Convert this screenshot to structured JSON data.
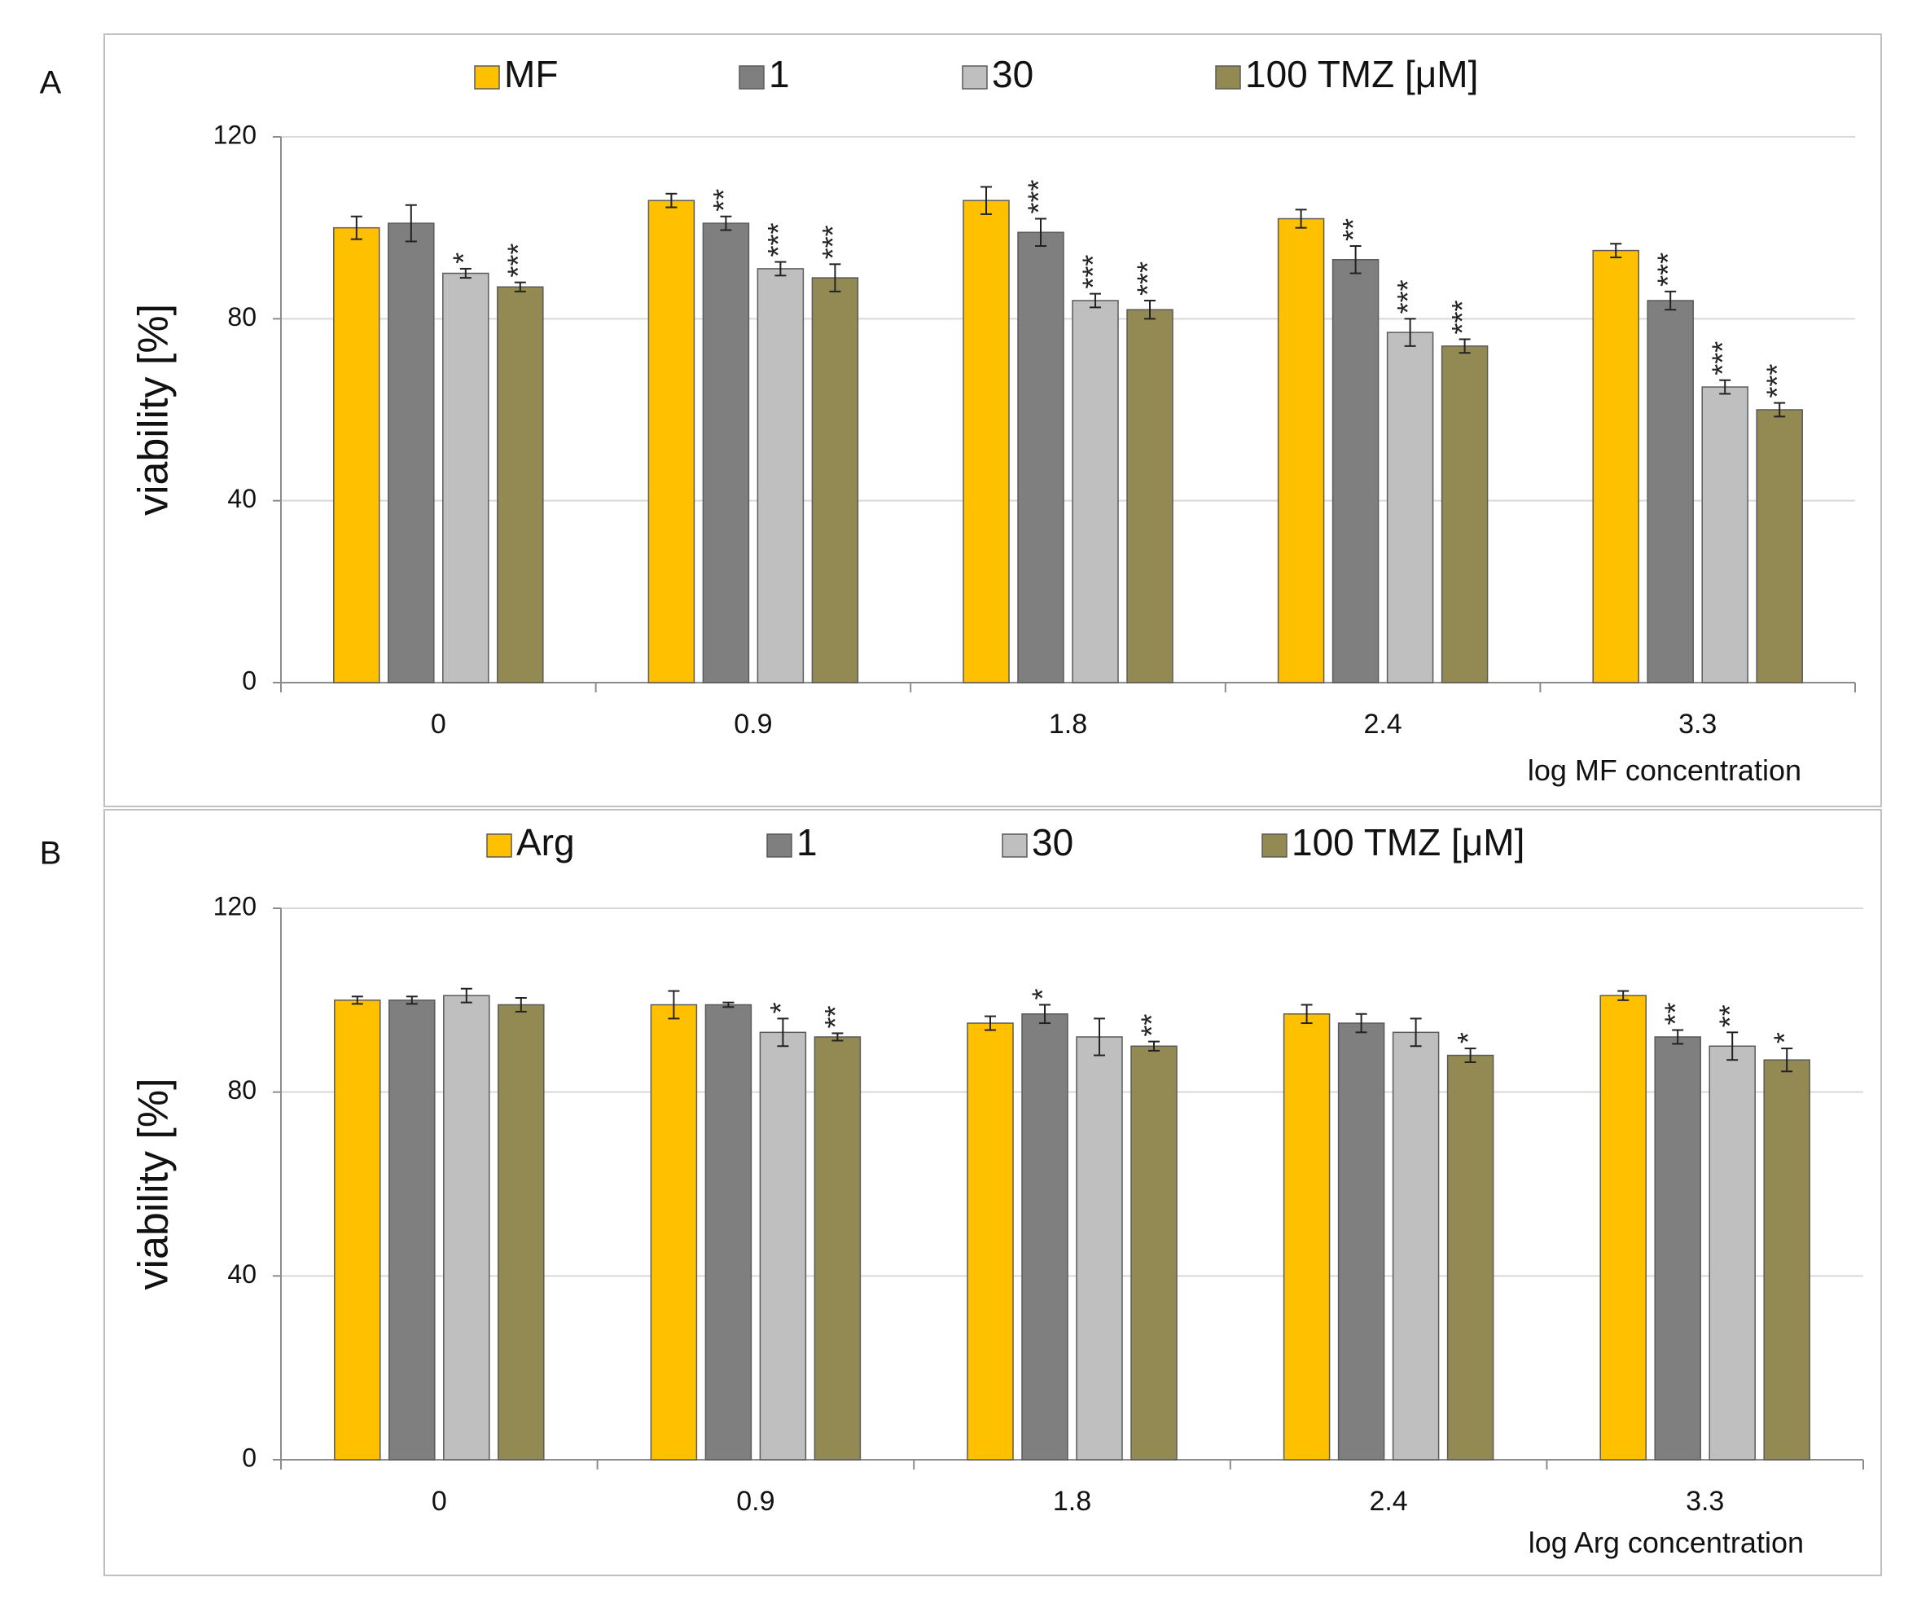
{
  "colors": {
    "series": [
      "#FFC000",
      "#7F7F7F",
      "#BFBFBF",
      "#938953"
    ],
    "bar_stroke": "#5a5a5a",
    "grid": "#d9d9d9",
    "axis": "#8c8c8c",
    "frame": "#c0c0c0",
    "text": "#111111"
  },
  "chart_data": [
    {
      "panel_label": "A",
      "type": "bar",
      "ylabel": "viability [%]",
      "xlabel": "log MF concentration",
      "ylim": [
        0,
        120
      ],
      "yticks": [
        "0",
        "40",
        "80",
        "120"
      ],
      "ytick_values": [
        0,
        40,
        80,
        120
      ],
      "grid": true,
      "legend_position": "top",
      "categories": [
        "0",
        "0.9",
        "1.8",
        "2.4",
        "3.3"
      ],
      "series": [
        {
          "name": "MF",
          "values": [
            100,
            106,
            106,
            102,
            95
          ],
          "errors": [
            2.5,
            1.5,
            3,
            2,
            1.5
          ],
          "sig": [
            "",
            "",
            "",
            "",
            ""
          ]
        },
        {
          "name": "1",
          "values": [
            101,
            101,
            99,
            93,
            84
          ],
          "errors": [
            4,
            1.5,
            3,
            3,
            2
          ],
          "sig": [
            "",
            "**",
            "***",
            "**",
            "***"
          ]
        },
        {
          "name": "30",
          "values": [
            90,
            91,
            84,
            77,
            65
          ],
          "errors": [
            1,
            1.5,
            1.5,
            3,
            1.5
          ],
          "sig": [
            "*",
            "***",
            "***",
            "***",
            "***"
          ]
        },
        {
          "name": "100 TMZ [μM]",
          "values": [
            87,
            89,
            82,
            74,
            60
          ],
          "errors": [
            1,
            3,
            2,
            1.5,
            1.5
          ],
          "sig": [
            "***",
            "***",
            "***",
            "***",
            "***"
          ]
        }
      ]
    },
    {
      "panel_label": "B",
      "type": "bar",
      "ylabel": "viability [%]",
      "xlabel": "log Arg concentration",
      "ylim": [
        0,
        120
      ],
      "yticks": [
        "0",
        "40",
        "80",
        "120"
      ],
      "ytick_values": [
        0,
        40,
        80,
        120
      ],
      "grid": true,
      "legend_position": "top",
      "categories": [
        "0",
        "0.9",
        "1.8",
        "2.4",
        "3.3"
      ],
      "series": [
        {
          "name": "Arg",
          "values": [
            100,
            99,
            95,
            97,
            101
          ],
          "errors": [
            0.8,
            3,
            1.5,
            2,
            1
          ],
          "sig": [
            "",
            "",
            "",
            "",
            ""
          ]
        },
        {
          "name": "1",
          "values": [
            100,
            99,
            97,
            95,
            92
          ],
          "errors": [
            0.8,
            0.5,
            2,
            2,
            1.5
          ],
          "sig": [
            "",
            "",
            "*",
            "",
            "**"
          ]
        },
        {
          "name": "30",
          "values": [
            101,
            93,
            92,
            93,
            90
          ],
          "errors": [
            1.5,
            3,
            4,
            3,
            3
          ],
          "sig": [
            "",
            "*",
            "",
            "",
            "**"
          ]
        },
        {
          "name": "100 TMZ [μM]",
          "values": [
            99,
            92,
            90,
            88,
            87
          ],
          "errors": [
            1.5,
            0.8,
            1,
            1.5,
            2.5
          ],
          "sig": [
            "",
            "**",
            "**",
            "*",
            "*"
          ]
        }
      ]
    }
  ]
}
